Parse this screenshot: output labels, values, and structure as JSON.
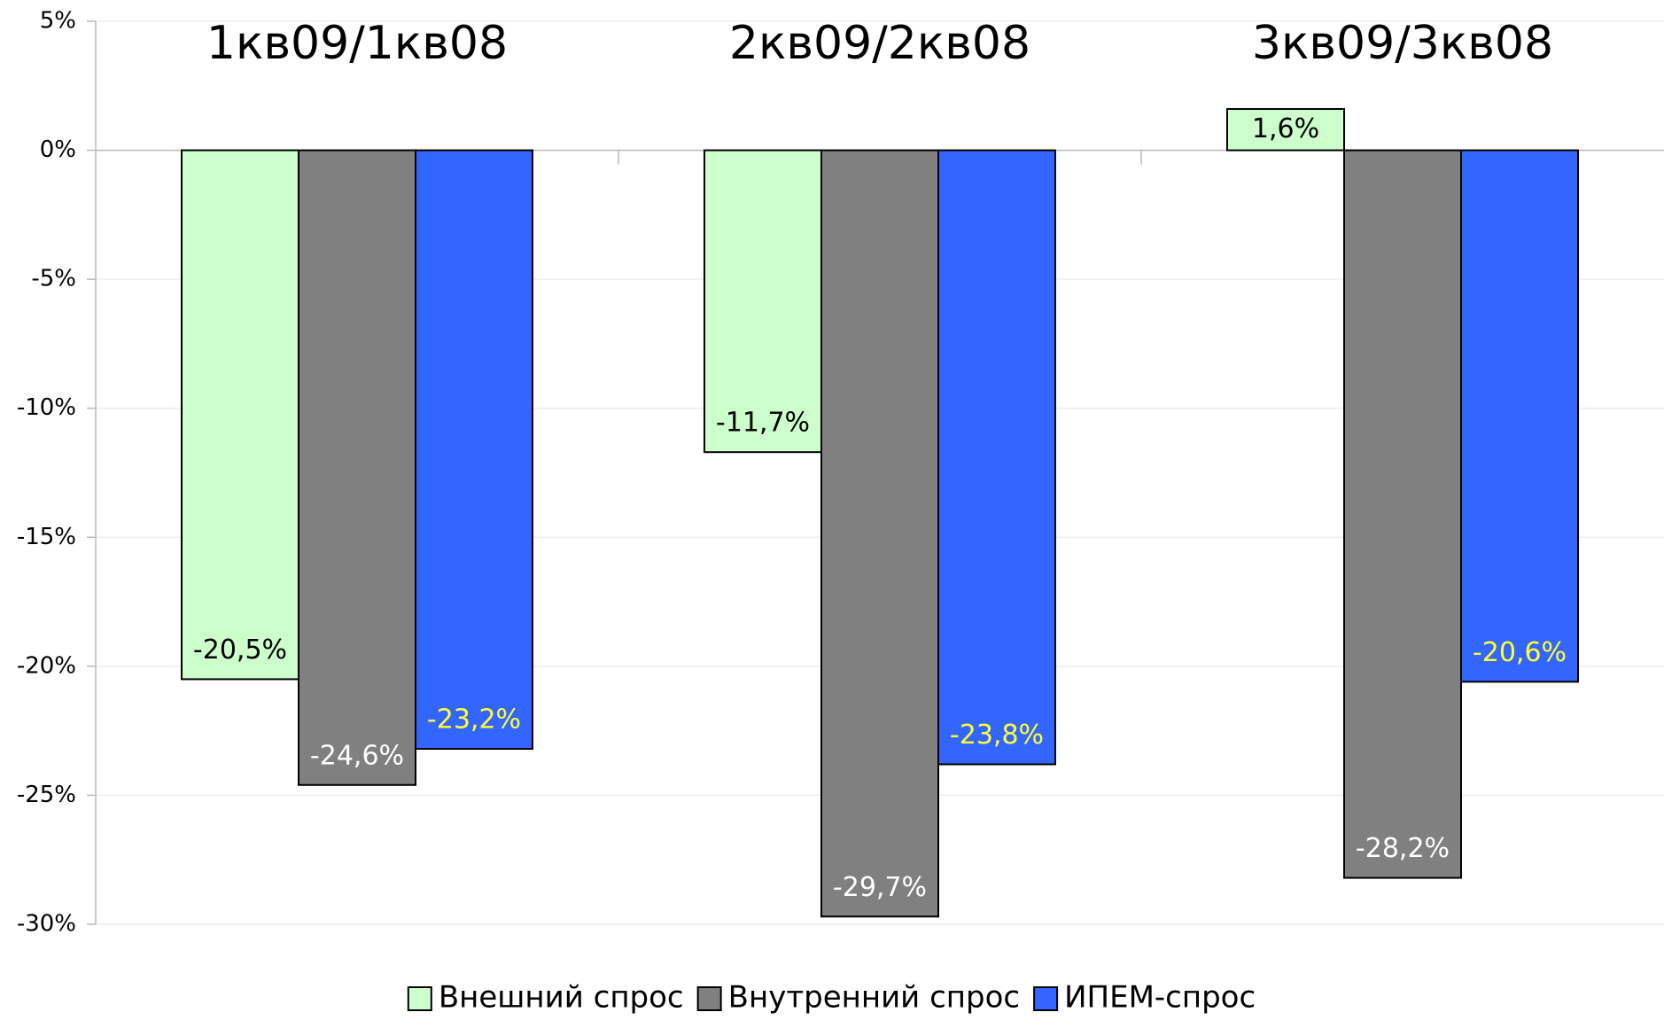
{
  "chart_data": {
    "type": "bar",
    "categories": [
      "1кв09/1кв08",
      "2кв09/2кв08",
      "3кв09/3кв08"
    ],
    "series": [
      {
        "name": "Внешний спрос",
        "color": "#ccffcc",
        "label_color": "#000000",
        "values": [
          -20.5,
          -11.7,
          1.6
        ],
        "value_labels": [
          "-20,5%",
          "-11,7%",
          "1,6%"
        ]
      },
      {
        "name": "Внутренний спрос",
        "color": "#808080",
        "label_color": "#ffffff",
        "values": [
          -24.6,
          -29.7,
          -28.2
        ],
        "value_labels": [
          "-24,6%",
          "-29,7%",
          "-28,2%"
        ]
      },
      {
        "name": "ИПЕМ-спрос",
        "color": "#3366ff",
        "label_color": "#ffff33",
        "values": [
          -23.2,
          -23.8,
          -20.6
        ],
        "value_labels": [
          "-23,2%",
          "-23,8%",
          "-20,6%"
        ]
      }
    ],
    "ylim": [
      -30,
      5
    ],
    "yticks": [
      {
        "value": 5,
        "label": "5%"
      },
      {
        "value": 0,
        "label": "0%"
      },
      {
        "value": -5,
        "label": "-5%"
      },
      {
        "value": -10,
        "label": "-10%"
      },
      {
        "value": -15,
        "label": "-15%"
      },
      {
        "value": -20,
        "label": "-20%"
      },
      {
        "value": -25,
        "label": "-25%"
      },
      {
        "value": -30,
        "label": "-30%"
      }
    ],
    "grid": true,
    "legend": "bottom"
  }
}
